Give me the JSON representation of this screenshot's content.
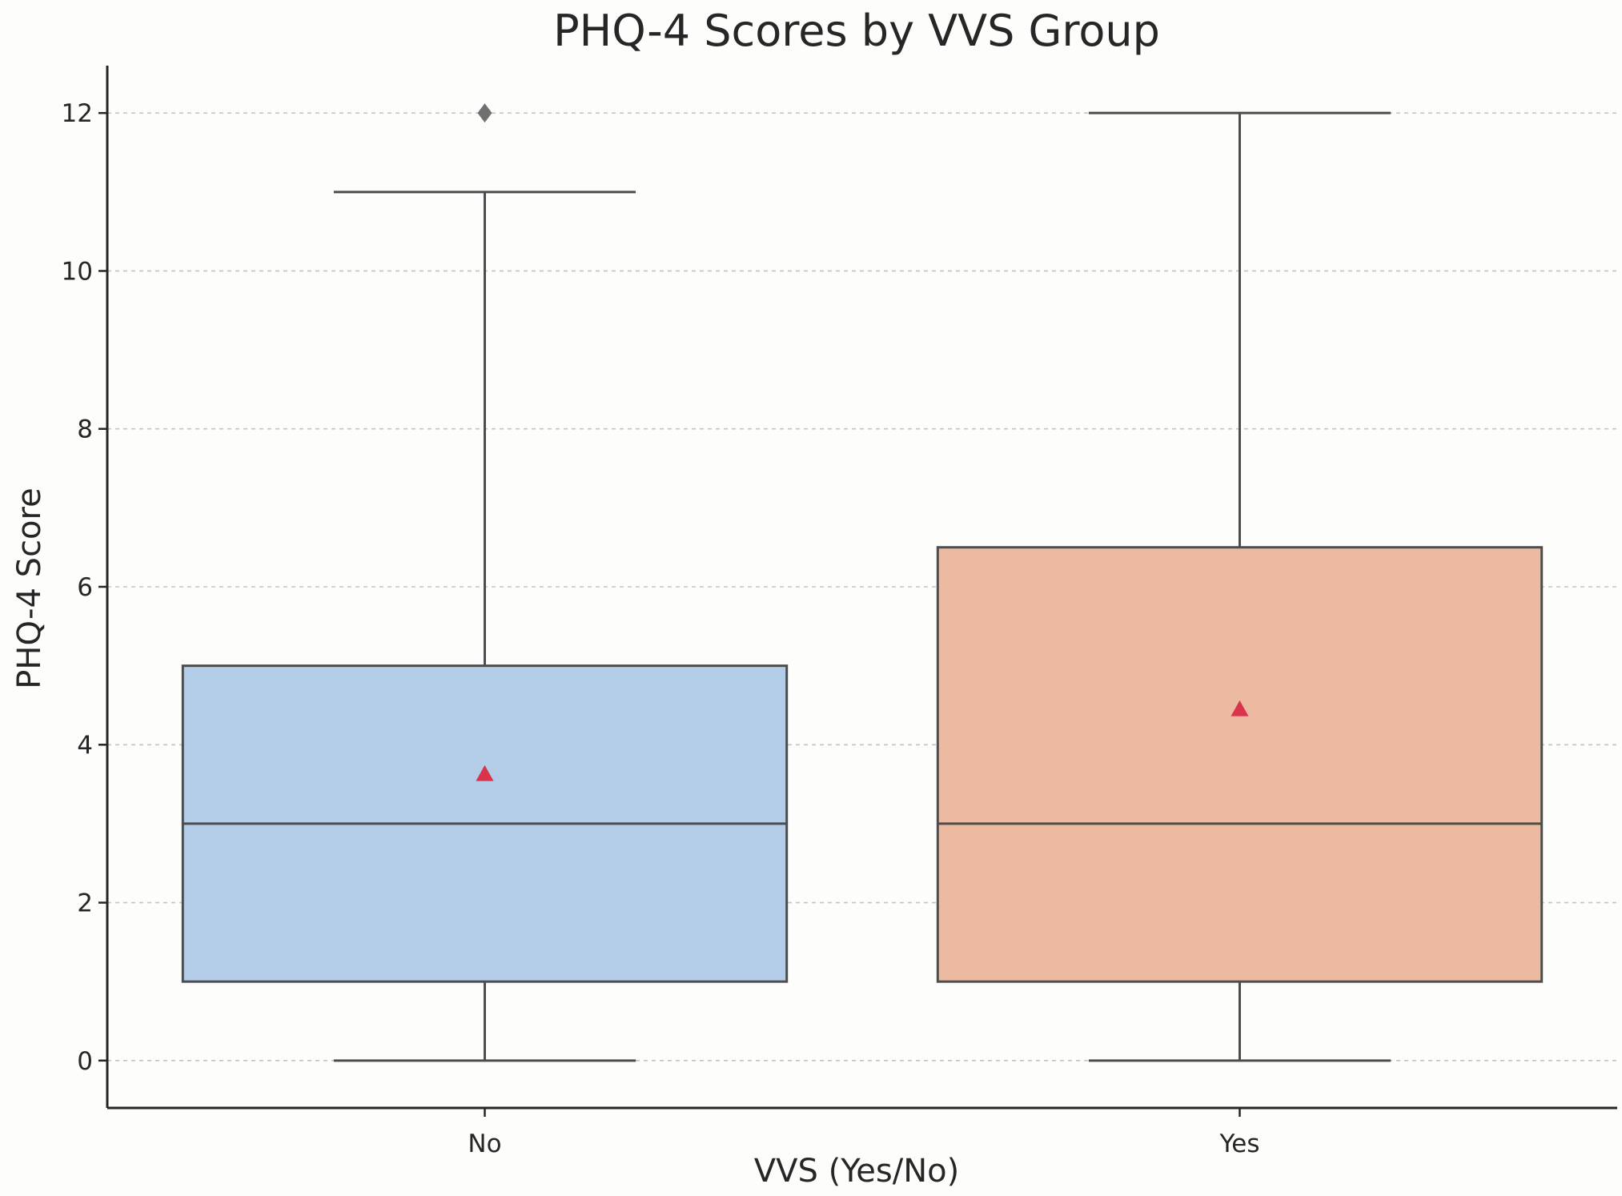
{
  "chart_data": {
    "type": "boxplot",
    "title": "PHQ-4 Scores by VVS Group",
    "xlabel": "VVS (Yes/No)",
    "ylabel": "PHQ-4 Score",
    "ylim": [
      -0.6,
      12.6
    ],
    "yticks": [
      "0",
      "2",
      "4",
      "6",
      "8",
      "10",
      "12"
    ],
    "grid": "horizontal-dashed",
    "categories": [
      "No",
      "Yes"
    ],
    "boxes": [
      {
        "category": "No",
        "whisker_low": 0,
        "q1": 1,
        "median": 3,
        "q3": 5,
        "whisker_high": 11,
        "mean": 3.63,
        "outliers": [
          12
        ],
        "color": "#b3cce8"
      },
      {
        "category": "Yes",
        "whisker_low": 0,
        "q1": 1,
        "median": 3,
        "q3": 6.5,
        "whisker_high": 12,
        "mean": 4.45,
        "outliers": [],
        "color": "#ebbaa1"
      }
    ],
    "mean_marker_color": "#d9334d",
    "outlier_color": "#707070",
    "line_color": "#4d4d4d"
  }
}
